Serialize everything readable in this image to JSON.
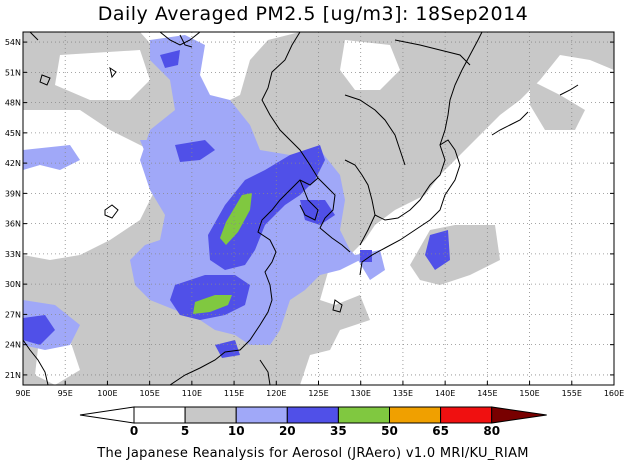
{
  "title": "Daily Averaged PM2.5 [ug/m3]: 18Sep2014",
  "footer": "The Japanese Reanalysis for Aerosol (JRAero) v1.0 MRI/KU_RIAM",
  "map": {
    "lon_range": [
      90,
      160
    ],
    "lat_range": [
      20,
      55
    ],
    "lon_ticks": [
      "90E",
      "95E",
      "100E",
      "105E",
      "110E",
      "115E",
      "120E",
      "125E",
      "130E",
      "135E",
      "140E",
      "145E",
      "150E",
      "155E",
      "160E"
    ],
    "lat_ticks": [
      "21N",
      "24N",
      "27N",
      "30N",
      "33N",
      "36N",
      "39N",
      "42N",
      "45N",
      "48N",
      "51N",
      "54N"
    ],
    "gridlines": "dotted",
    "coastlines": true
  },
  "colorbar": {
    "levels": [
      "0",
      "5",
      "10",
      "20",
      "35",
      "50",
      "65",
      "80"
    ],
    "colors": {
      "bin_0_5": "#ffffff",
      "bin_5_10": "#c8c8c8",
      "bin_10_20": "#a0a8f8",
      "bin_20_35": "#5050e8",
      "bin_35_50": "#80c840",
      "bin_50_65": "#f0a000",
      "bin_65_80": "#f01010",
      "bin_80_plus": "#780000"
    }
  }
}
